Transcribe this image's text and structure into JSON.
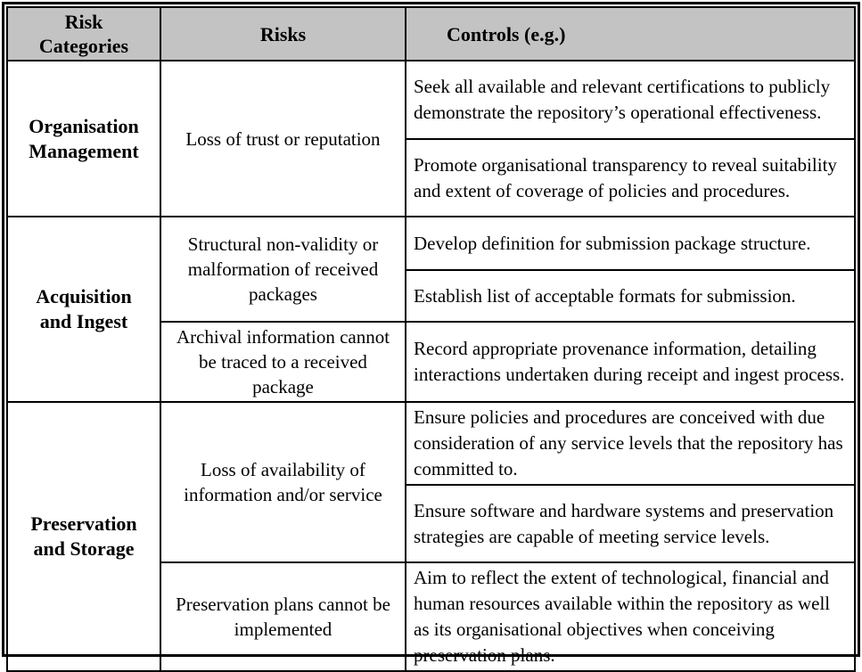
{
  "table": {
    "columns": [
      "Risk\nCategories",
      "Risks",
      "Controls (e.g.)"
    ],
    "groups": [
      {
        "category": "Organisation\nManagement",
        "risks": [
          {
            "risk": "Loss of trust or reputation",
            "controls": [
              "Seek all available and relevant certifications to publicly demonstrate the repository’s operational effectiveness.",
              "Promote organisational transparency to reveal suitability and extent of coverage of policies and procedures."
            ]
          }
        ]
      },
      {
        "category": "Acquisition\nand Ingest",
        "risks": [
          {
            "risk": "Structural non-validity or malformation of received packages",
            "controls": [
              "Develop definition for submission package structure.",
              "Establish list of acceptable formats for submission."
            ]
          },
          {
            "risk": "Archival information cannot be traced to a received package",
            "controls": [
              "Record appropriate provenance information, detailing interactions undertaken during receipt and ingest process."
            ]
          }
        ]
      },
      {
        "category": "Preservation\nand Storage",
        "risks": [
          {
            "risk": "Loss of availability of information and/or service",
            "controls": [
              "Ensure policies and procedures are conceived with due consideration of any service levels that the repository has committed to.",
              "Ensure software and hardware systems and preservation strategies are capable of meeting service levels."
            ]
          },
          {
            "risk": "Preservation plans cannot be implemented",
            "controls": [
              "Aim to reflect the extent of technological, financial and human resources available within the repository as well as its organisational objectives when conceiving preservation plans."
            ]
          }
        ]
      }
    ],
    "colors": {
      "header_bg": "#c3c3c3",
      "border": "#000000",
      "background": "#ffffff"
    }
  }
}
